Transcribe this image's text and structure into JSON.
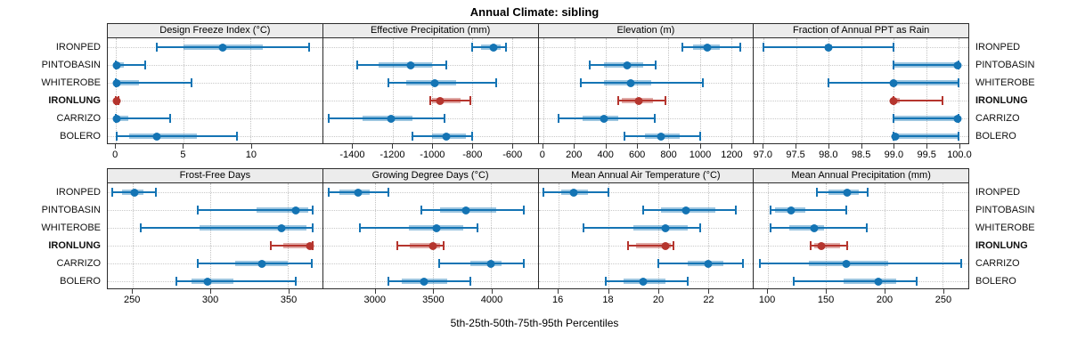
{
  "title": "Annual Climate: sibling",
  "caption": "5th-25th-50th-75th-95th Percentiles",
  "sites": [
    "IRONPED",
    "PINTOBASIN",
    "WHITEROBE",
    "IRONLUNG",
    "CARRIZO",
    "BOLERO"
  ],
  "highlight_site": "IRONLUNG",
  "colors": {
    "series_normal": "#1474b4",
    "series_highlight": "#b5352e",
    "strip_background": "#ececec",
    "panel_border": "#2b2b2b",
    "grid_line": "#c6c6c6"
  },
  "chart_data": [
    {
      "type": "dotplot-interval",
      "row": 1,
      "title": "Design Freeze Index (°C)",
      "xlim": [
        -0.6,
        15.3
      ],
      "ticks": [
        0,
        5,
        10
      ],
      "tick_labels": [
        "0",
        "5",
        "10"
      ],
      "percentiles": [
        5,
        25,
        50,
        75,
        95
      ],
      "values": {
        "IRONPED": [
          3.0,
          5.0,
          7.9,
          10.9,
          14.3
        ],
        "PINTOBASIN": [
          0,
          0,
          0.05,
          0.6,
          2.2
        ],
        "WHITEROBE": [
          0,
          0,
          0.05,
          1.7,
          5.6
        ],
        "IRONLUNG": [
          0,
          0,
          0.05,
          0.1,
          0.2
        ],
        "CARRIZO": [
          0,
          0,
          0.05,
          0.9,
          4.0
        ],
        "BOLERO": [
          0.05,
          1.0,
          3.0,
          6.0,
          9.0
        ]
      }
    },
    {
      "type": "dotplot-interval",
      "row": 1,
      "title": "Effective Precipitation (mm)",
      "xlim": [
        -1550,
        -470
      ],
      "ticks": [
        -1400,
        -1200,
        -1000,
        -800,
        -600
      ],
      "tick_labels": [
        "-1400",
        "-1200",
        "-1000",
        "-800",
        "-600"
      ],
      "percentiles": [
        5,
        25,
        50,
        75,
        95
      ],
      "values": {
        "IRONPED": [
          -800,
          -755,
          -690,
          -655,
          -630
        ],
        "PINTOBASIN": [
          -1380,
          -1270,
          -1110,
          -1000,
          -930
        ],
        "WHITEROBE": [
          -1220,
          -1130,
          -990,
          -880,
          -680
        ],
        "IRONLUNG": [
          -1010,
          -1000,
          -960,
          -860,
          -810
        ],
        "CARRIZO": [
          -1520,
          -1350,
          -1210,
          -1100,
          -940
        ],
        "BOLERO": [
          -1100,
          -1000,
          -930,
          -830,
          -800
        ]
      }
    },
    {
      "type": "dotplot-interval",
      "row": 1,
      "title": "Elevation (m)",
      "xlim": [
        -30,
        1340
      ],
      "ticks": [
        0,
        200,
        400,
        600,
        800,
        1000,
        1200
      ],
      "tick_labels": [
        "0",
        "200",
        "400",
        "600",
        "800",
        "1000",
        "1200"
      ],
      "percentiles": [
        5,
        25,
        50,
        75,
        95
      ],
      "values": {
        "IRONPED": [
          890,
          960,
          1050,
          1130,
          1260
        ],
        "PINTOBASIN": [
          300,
          390,
          535,
          640,
          720
        ],
        "WHITEROBE": [
          240,
          390,
          560,
          690,
          1020
        ],
        "IRONLUNG": [
          480,
          500,
          610,
          700,
          780
        ],
        "CARRIZO": [
          100,
          250,
          390,
          480,
          710
        ],
        "BOLERO": [
          520,
          650,
          755,
          870,
          1000
        ]
      }
    },
    {
      "type": "dotplot-interval",
      "row": 1,
      "title": "Fraction of Annual PPT as Rain",
      "xlim": [
        96.85,
        100.15
      ],
      "ticks": [
        97.0,
        97.5,
        98.0,
        98.5,
        99.0,
        99.5,
        100.0
      ],
      "tick_labels": [
        "97.0",
        "97.5",
        "98.0",
        "98.5",
        "99.0",
        "99.5",
        "100.0"
      ],
      "percentiles": [
        5,
        25,
        50,
        75,
        95
      ],
      "values": {
        "IRONPED": [
          97.0,
          97.95,
          98.0,
          98.05,
          99.0
        ],
        "PINTOBASIN": [
          99.0,
          99.0,
          99.98,
          100.0,
          100.0
        ],
        "WHITEROBE": [
          98.0,
          99.0,
          99.0,
          100.0,
          100.0
        ],
        "IRONLUNG": [
          99.0,
          99.0,
          99.0,
          99.1,
          99.75
        ],
        "CARRIZO": [
          99.0,
          99.0,
          99.98,
          100.0,
          100.0
        ],
        "BOLERO": [
          99.0,
          99.0,
          99.02,
          100.0,
          100.0
        ]
      }
    },
    {
      "type": "dotplot-interval",
      "row": 2,
      "title": "Frost-Free Days",
      "xlim": [
        234,
        372
      ],
      "ticks": [
        250,
        300,
        350
      ],
      "tick_labels": [
        "250",
        "300",
        "350"
      ],
      "percentiles": [
        5,
        25,
        50,
        75,
        95
      ],
      "values": {
        "IRONPED": [
          237,
          243,
          251,
          257,
          265
        ],
        "PINTOBASIN": [
          292,
          330,
          355,
          363,
          366
        ],
        "WHITEROBE": [
          255,
          293,
          346,
          362,
          366
        ],
        "IRONLUNG": [
          339,
          347,
          364,
          365,
          366
        ],
        "CARRIZO": [
          292,
          316,
          333,
          350,
          365
        ],
        "BOLERO": [
          278,
          288,
          298,
          315,
          355
        ]
      }
    },
    {
      "type": "dotplot-interval",
      "row": 2,
      "title": "Growing Degree Days (°C)",
      "xlim": [
        2550,
        4400
      ],
      "ticks": [
        3000,
        3500,
        4000
      ],
      "tick_labels": [
        "3000",
        "3500",
        "4000"
      ],
      "percentiles": [
        5,
        25,
        50,
        75,
        95
      ],
      "values": {
        "IRONPED": [
          2600,
          2690,
          2850,
          2950,
          3110
        ],
        "PINTOBASIN": [
          3400,
          3560,
          3780,
          4040,
          4280
        ],
        "WHITEROBE": [
          2870,
          3290,
          3530,
          3760,
          3880
        ],
        "IRONLUNG": [
          3190,
          3300,
          3500,
          3560,
          3590
        ],
        "CARRIZO": [
          3550,
          3820,
          4000,
          4090,
          4280
        ],
        "BOLERO": [
          3110,
          3230,
          3420,
          3620,
          3820
        ]
      }
    },
    {
      "type": "dotplot-interval",
      "row": 2,
      "title": "Mean Annual Air Temperature (°C)",
      "xlim": [
        15.2,
        23.8
      ],
      "ticks": [
        16,
        18,
        20,
        22
      ],
      "tick_labels": [
        "16",
        "18",
        "20",
        "22"
      ],
      "percentiles": [
        5,
        25,
        50,
        75,
        95
      ],
      "values": {
        "IRONPED": [
          15.4,
          16.1,
          16.6,
          17.2,
          18.0
        ],
        "PINTOBASIN": [
          19.4,
          20.1,
          21.1,
          22.3,
          23.1
        ],
        "WHITEROBE": [
          17.0,
          19.0,
          20.3,
          21.2,
          21.7
        ],
        "IRONLUNG": [
          18.8,
          19.1,
          20.3,
          20.5,
          20.6
        ],
        "CARRIZO": [
          20.0,
          21.2,
          22.0,
          22.6,
          23.4
        ],
        "BOLERO": [
          17.9,
          18.6,
          19.4,
          20.3,
          21.2
        ]
      }
    },
    {
      "type": "dotplot-interval",
      "row": 2,
      "title": "Mean Annual Precipitation (mm)",
      "xlim": [
        88,
        272
      ],
      "ticks": [
        100,
        150,
        200,
        250
      ],
      "tick_labels": [
        "100",
        "150",
        "200",
        "250"
      ],
      "percentiles": [
        5,
        25,
        50,
        75,
        95
      ],
      "values": {
        "IRONPED": [
          142,
          152,
          168,
          178,
          186
        ],
        "PINTOBASIN": [
          102,
          106,
          120,
          132,
          167
        ],
        "WHITEROBE": [
          102,
          118,
          140,
          148,
          185
        ],
        "IRONLUNG": [
          137,
          140,
          146,
          162,
          168
        ],
        "CARRIZO": [
          93,
          135,
          167,
          203,
          266
        ],
        "BOLERO": [
          122,
          165,
          195,
          210,
          228
        ]
      }
    }
  ]
}
